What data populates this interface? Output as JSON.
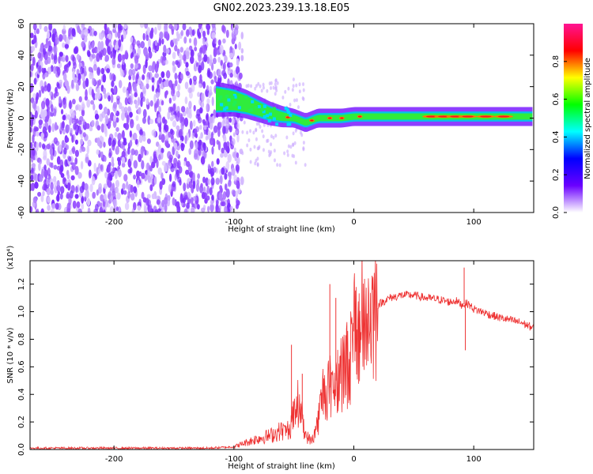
{
  "title": "GN02.2023.239.13.18.E05",
  "chart_data": [
    {
      "type": "heatmap",
      "xlabel": "Height of straight line (km)",
      "ylabel": "Frequency (Hz)",
      "xlim": [
        -270,
        150
      ],
      "ylim": [
        -60,
        60
      ],
      "xticks": [
        -200,
        -100,
        0,
        100
      ],
      "yticks": [
        -60,
        -40,
        -20,
        0,
        20,
        40,
        60
      ],
      "colorbar": {
        "label": "Normalized spectral amplitude",
        "range": [
          0,
          1
        ],
        "ticks": [
          "0.0",
          "0.2",
          "0.4",
          "0.6",
          "0.8"
        ],
        "colors": [
          "#ffffff",
          "#6a00ff",
          "#0000ff",
          "#00ffff",
          "#00ff00",
          "#ffff00",
          "#ff0000",
          "#ff1493"
        ]
      },
      "ridge": [
        [
          -115,
          12
        ],
        [
          -100,
          11
        ],
        [
          -90,
          9
        ],
        [
          -80,
          6
        ],
        [
          -70,
          3
        ],
        [
          -60,
          1
        ],
        [
          -50,
          0
        ],
        [
          -40,
          -3
        ],
        [
          -30,
          0
        ],
        [
          -20,
          0
        ],
        [
          -10,
          0
        ],
        [
          0,
          1
        ],
        [
          20,
          1
        ],
        [
          50,
          1
        ],
        [
          80,
          1
        ],
        [
          100,
          1
        ],
        [
          120,
          1
        ],
        [
          150,
          1
        ]
      ],
      "noise_region_x": [
        -270,
        -97
      ]
    },
    {
      "type": "line",
      "xlabel": "Height of straight line (km)",
      "ylabel": "SNR (10 * v/v)",
      "multiplier": "(x10⁴)",
      "xlim": [
        -270,
        150
      ],
      "ylim": [
        0,
        1.37
      ],
      "xticks": [
        -200,
        -100,
        0,
        100
      ],
      "yticks": [
        "0.0",
        "0.2",
        "0.4",
        "0.6",
        "0.8",
        "1.0",
        "1.2"
      ],
      "color": "#ee3333",
      "series": [
        {
          "x": [
            -270,
            -200,
            -120,
            -100,
            -90,
            -80,
            -70,
            -60,
            -55,
            -50,
            -45,
            -40,
            -35,
            -30,
            -25,
            -20,
            -15,
            -10,
            -5,
            0,
            5,
            10,
            20,
            30,
            40,
            50,
            60,
            70,
            80,
            85,
            90,
            95,
            100,
            110,
            120,
            130,
            140,
            150
          ],
          "y": [
            0.01,
            0.01,
            0.01,
            0.02,
            0.05,
            0.08,
            0.1,
            0.14,
            0.12,
            0.25,
            0.3,
            0.1,
            0.06,
            0.2,
            0.45,
            0.45,
            0.5,
            0.6,
            0.62,
            0.78,
            0.88,
            0.95,
            1.05,
            1.1,
            1.12,
            1.12,
            1.1,
            1.09,
            1.07,
            1.08,
            1.05,
            1.06,
            1.02,
            0.99,
            0.96,
            0.94,
            0.92,
            0.88
          ]
        }
      ],
      "spikes": [
        [
          -52,
          0.76
        ],
        [
          -43,
          0.55
        ],
        [
          -20,
          1.2
        ],
        [
          -15,
          1.1
        ],
        [
          -5,
          0.7
        ],
        [
          92,
          1.32
        ],
        [
          93,
          0.72
        ],
        [
          113,
          0.95
        ]
      ]
    }
  ]
}
